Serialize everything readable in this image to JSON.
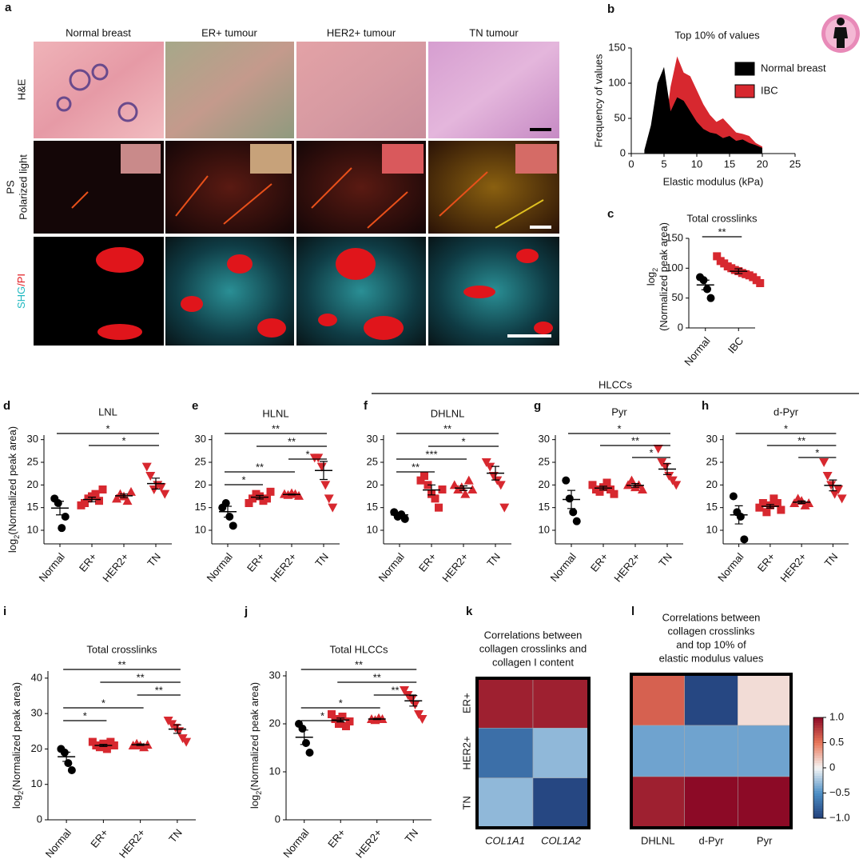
{
  "panel_a": {
    "label": "a",
    "columns": [
      "Normal breast",
      "ER+ tumour",
      "HER2+ tumour",
      "TN tumour"
    ],
    "row_labels": [
      "H&E",
      "PS",
      "Polarized light"
    ],
    "shg_label": "SHG",
    "pi_label": "/PI"
  },
  "hlcc_label": "HLCCs",
  "chart_data": [
    {
      "type": "area",
      "label": "b",
      "title": "Top 10% of values",
      "xlabel": "Elastic modulus (kPa)",
      "ylabel": "Frequency of values",
      "xlim": [
        0,
        25
      ],
      "xticks": [
        0,
        5,
        10,
        15,
        20,
        25
      ],
      "ylim": [
        0,
        150
      ],
      "yticks": [
        0,
        50,
        100,
        150
      ],
      "series": [
        {
          "name": "IBC",
          "color": "#d7282f",
          "x": [
            5,
            5.5,
            6,
            7,
            8,
            9,
            10,
            11,
            12,
            13,
            14,
            15,
            16,
            17,
            18,
            19,
            20
          ],
          "values": [
            0,
            60,
            95,
            138,
            115,
            110,
            90,
            70,
            55,
            45,
            50,
            40,
            30,
            28,
            25,
            15,
            10
          ]
        },
        {
          "name": "Normal breast",
          "color": "#000000",
          "x": [
            2,
            3,
            4,
            5,
            6,
            7,
            8,
            9,
            10,
            11,
            12,
            13,
            14,
            15,
            16,
            17,
            18,
            19,
            20
          ],
          "values": [
            5,
            40,
            100,
            123,
            60,
            80,
            75,
            60,
            45,
            35,
            30,
            28,
            22,
            25,
            18,
            20,
            15,
            12,
            8
          ]
        }
      ]
    },
    {
      "type": "dotplot",
      "label": "c",
      "title": "Total crosslinks",
      "ylabel": [
        "log",
        "2",
        "(Normalized peak area)"
      ],
      "categories": [
        "Normal",
        "IBC"
      ],
      "markers": [
        "circle",
        "square"
      ],
      "colors": [
        "#000000",
        "#d7282f"
      ],
      "ylim": [
        0,
        150
      ],
      "yticks": [
        0,
        50,
        100,
        150
      ],
      "values": [
        [
          85,
          80,
          65,
          50
        ],
        [
          120,
          112,
          108,
          103,
          100,
          97,
          95,
          92,
          90,
          88,
          85,
          80,
          75
        ]
      ],
      "means": [
        72,
        95
      ],
      "errors": [
        8,
        4
      ],
      "comparisons": [
        {
          "groups": [
            "Normal",
            "IBC"
          ],
          "label": "**"
        }
      ]
    },
    {
      "type": "dotplot",
      "label": "d",
      "title": "LNL",
      "ylabel": [
        "log",
        "2",
        "(Normalized peak area)"
      ],
      "categories": [
        "Normal",
        "ER+",
        "HER2+",
        "TN"
      ],
      "markers": [
        "circle",
        "square",
        "triangle-up",
        "triangle-down"
      ],
      "colors": [
        "#000000",
        "#d7282f",
        "#d7282f",
        "#d7282f"
      ],
      "ylim": [
        7,
        31
      ],
      "yticks": [
        10,
        15,
        20,
        25,
        30
      ],
      "values": [
        [
          17,
          16,
          10.5,
          13
        ],
        [
          15.5,
          16,
          17,
          17.5,
          18,
          16.5,
          19
        ],
        [
          17,
          18,
          17.5,
          16.5,
          18.5
        ],
        [
          24,
          22,
          19,
          20,
          19.5,
          18
        ]
      ],
      "means": [
        14.9,
        16.8,
        17.6,
        20.3
      ],
      "errors": [
        1.5,
        0.5,
        0.4,
        1.2
      ],
      "comparisons": [
        {
          "groups": [
            "Normal",
            "TN"
          ],
          "label": "*"
        },
        {
          "groups": [
            "ER+",
            "TN"
          ],
          "label": "*"
        }
      ]
    },
    {
      "type": "dotplot",
      "label": "e",
      "title": "HLNL",
      "categories": [
        "Normal",
        "ER+",
        "HER2+",
        "TN"
      ],
      "markers": [
        "circle",
        "square",
        "triangle-up",
        "triangle-down"
      ],
      "colors": [
        "#000000",
        "#d7282f",
        "#d7282f",
        "#d7282f"
      ],
      "ylim": [
        7,
        31
      ],
      "yticks": [
        10,
        15,
        20,
        25,
        30
      ],
      "values": [
        [
          15,
          16,
          13,
          11
        ],
        [
          16,
          17,
          18,
          17.5,
          16.5,
          17,
          18.5
        ],
        [
          18,
          17.8,
          18.2,
          18,
          17.6
        ],
        [
          26,
          26,
          24,
          20,
          17,
          15
        ]
      ],
      "means": [
        14.1,
        17.3,
        17.9,
        23.2
      ],
      "errors": [
        1.2,
        0.4,
        0.1,
        2
      ],
      "comparisons": [
        {
          "groups": [
            "Normal",
            "TN"
          ],
          "label": "**"
        },
        {
          "groups": [
            "ER+",
            "TN"
          ],
          "label": "**"
        },
        {
          "groups": [
            "HER2+",
            "TN"
          ],
          "label": "*"
        },
        {
          "groups": [
            "Normal",
            "HER2+"
          ],
          "label": "**"
        },
        {
          "groups": [
            "Normal",
            "ER+"
          ],
          "label": "*"
        }
      ]
    },
    {
      "type": "dotplot",
      "label": "f",
      "title": "DHLNL",
      "categories": [
        "Normal",
        "ER+",
        "HER2+",
        "TN"
      ],
      "markers": [
        "circle",
        "square",
        "triangle-up",
        "triangle-down"
      ],
      "colors": [
        "#000000",
        "#d7282f",
        "#d7282f",
        "#d7282f"
      ],
      "ylim": [
        7,
        31
      ],
      "yticks": [
        10,
        15,
        20,
        25,
        30
      ],
      "values": [
        [
          14,
          13,
          13.5,
          12.5
        ],
        [
          21,
          22,
          20,
          18,
          17,
          15,
          19
        ],
        [
          20,
          19,
          19.5,
          18,
          21,
          19
        ],
        [
          25,
          24,
          22,
          21,
          20,
          15
        ]
      ],
      "means": [
        13.4,
        18.9,
        19.3,
        22.6
      ],
      "errors": [
        0.5,
        1.1,
        0.5,
        1.5
      ],
      "comparisons": [
        {
          "groups": [
            "Normal",
            "TN"
          ],
          "label": "**"
        },
        {
          "groups": [
            "ER+",
            "TN"
          ],
          "label": "*"
        },
        {
          "groups": [
            "Normal",
            "HER2+"
          ],
          "label": "***"
        },
        {
          "groups": [
            "Normal",
            "ER+"
          ],
          "label": "**"
        }
      ]
    },
    {
      "type": "dotplot",
      "label": "g",
      "title": "Pyr",
      "categories": [
        "Normal",
        "ER+",
        "HER2+",
        "TN"
      ],
      "markers": [
        "circle",
        "square",
        "triangle-up",
        "triangle-down"
      ],
      "colors": [
        "#000000",
        "#d7282f",
        "#d7282f",
        "#d7282f"
      ],
      "ylim": [
        7,
        31
      ],
      "yticks": [
        10,
        15,
        20,
        25,
        30
      ],
      "values": [
        [
          21,
          17,
          14,
          12
        ],
        [
          20,
          19,
          18.5,
          19.5,
          20.5,
          19,
          18
        ],
        [
          20,
          21,
          19.5,
          20,
          19
        ],
        [
          28,
          25,
          24,
          22,
          21,
          20
        ]
      ],
      "means": [
        16.8,
        19.3,
        19.9,
        23.5
      ],
      "errors": [
        2,
        0.4,
        0.4,
        1.2
      ],
      "comparisons": [
        {
          "groups": [
            "Normal",
            "TN"
          ],
          "label": "*"
        },
        {
          "groups": [
            "ER+",
            "TN"
          ],
          "label": "**"
        },
        {
          "groups": [
            "HER2+",
            "TN"
          ],
          "label": "*"
        }
      ]
    },
    {
      "type": "dotplot",
      "label": "h",
      "title": "d-Pyr",
      "categories": [
        "Normal",
        "ER+",
        "HER2+",
        "TN"
      ],
      "markers": [
        "circle",
        "square",
        "triangle-up",
        "triangle-down"
      ],
      "colors": [
        "#000000",
        "#d7282f",
        "#d7282f",
        "#d7282f"
      ],
      "ylim": [
        7,
        31
      ],
      "yticks": [
        10,
        15,
        20,
        25,
        30
      ],
      "values": [
        [
          17.5,
          14,
          13,
          8
        ],
        [
          15,
          16,
          14,
          15.5,
          17,
          16,
          14.5
        ],
        [
          16,
          17,
          16.5,
          15.5,
          16
        ],
        [
          25,
          22,
          20,
          18,
          19,
          17
        ]
      ],
      "means": [
        13.4,
        15.3,
        16.2,
        19.9
      ],
      "errors": [
        2,
        0.4,
        0.3,
        1.2
      ],
      "comparisons": [
        {
          "groups": [
            "Normal",
            "TN"
          ],
          "label": "*"
        },
        {
          "groups": [
            "ER+",
            "TN"
          ],
          "label": "**"
        },
        {
          "groups": [
            "HER2+",
            "TN"
          ],
          "label": "*"
        }
      ]
    },
    {
      "type": "dotplot",
      "label": "i",
      "title": "Total crosslinks",
      "ylabel": [
        "log",
        "2",
        "(Normalized peak area)"
      ],
      "categories": [
        "Normal",
        "ER+",
        "HER2+",
        "TN"
      ],
      "markers": [
        "circle",
        "square",
        "triangle-up",
        "triangle-down"
      ],
      "colors": [
        "#000000",
        "#d7282f",
        "#d7282f",
        "#d7282f"
      ],
      "ylim": [
        0,
        42
      ],
      "yticks": [
        0,
        10,
        20,
        30,
        40
      ],
      "values": [
        [
          20,
          19,
          16,
          14
        ],
        [
          22,
          21,
          20.5,
          21.5,
          20,
          22,
          21
        ],
        [
          21,
          21.5,
          21,
          20.5,
          21.2
        ],
        [
          28,
          27,
          26,
          25,
          23,
          22
        ]
      ],
      "means": [
        17.8,
        21,
        21.2,
        25.6
      ],
      "errors": [
        1.3,
        0.3,
        0.2,
        1.2
      ],
      "comparisons": [
        {
          "groups": [
            "Normal",
            "TN"
          ],
          "label": "**"
        },
        {
          "groups": [
            "ER+",
            "TN"
          ],
          "label": "**"
        },
        {
          "groups": [
            "HER2+",
            "TN"
          ],
          "label": "**"
        },
        {
          "groups": [
            "Normal",
            "HER2+"
          ],
          "label": "*"
        },
        {
          "groups": [
            "Normal",
            "ER+"
          ],
          "label": "*"
        }
      ]
    },
    {
      "type": "dotplot",
      "label": "j",
      "title": "Total HLCCs",
      "ylabel": [
        "log",
        "2",
        "(Normalized peak area)"
      ],
      "categories": [
        "Normal",
        "ER+",
        "HER2+",
        "TN"
      ],
      "markers": [
        "circle",
        "square",
        "triangle-up",
        "triangle-down"
      ],
      "colors": [
        "#000000",
        "#d7282f",
        "#d7282f",
        "#d7282f"
      ],
      "ylim": [
        0,
        31
      ],
      "yticks": [
        0,
        10,
        20,
        30
      ],
      "values": [
        [
          20,
          19,
          16,
          14
        ],
        [
          22,
          21,
          20,
          21.5,
          19.5,
          20.5
        ],
        [
          21,
          20.8,
          21.2,
          21
        ],
        [
          27,
          26,
          25,
          24,
          22,
          21
        ]
      ],
      "means": [
        17.2,
        20.8,
        21,
        24.8
      ],
      "errors": [
        1.5,
        0.4,
        0.1,
        1.1
      ],
      "comparisons": [
        {
          "groups": [
            "Normal",
            "TN"
          ],
          "label": "**"
        },
        {
          "groups": [
            "ER+",
            "TN"
          ],
          "label": "**"
        },
        {
          "groups": [
            "HER2+",
            "TN"
          ],
          "label": "**"
        },
        {
          "groups": [
            "Normal",
            "HER2+"
          ],
          "label": "*"
        },
        {
          "groups": [
            "Normal",
            "ER+"
          ],
          "label": "*"
        }
      ]
    },
    {
      "type": "heatmap",
      "label": "k",
      "title": [
        "Correlations between",
        "collagen crosslinks and",
        "collagen I content"
      ],
      "rows": [
        "ER+",
        "HER2+",
        "TN"
      ],
      "columns": [
        "COL1A1",
        "COL1A2"
      ],
      "values": [
        [
          0.9,
          0.9
        ],
        [
          -0.7,
          -0.3
        ],
        [
          -0.3,
          -0.95
        ]
      ],
      "zlim": [
        -1,
        1
      ]
    },
    {
      "type": "heatmap",
      "label": "l",
      "title": [
        "Correlations between",
        "collagen crosslinks",
        "and top 10% of",
        "elastic modulus values"
      ],
      "columns": [
        "DHLNL",
        "d-Pyr",
        "Pyr"
      ],
      "values": [
        [
          0.6,
          -0.95,
          0.1
        ],
        [
          -0.4,
          -0.4,
          -0.4
        ],
        [
          0.9,
          1.0,
          1.0
        ]
      ],
      "zlim": [
        -1,
        1
      ],
      "colorbar_ticks": [
        {
          "value": 1,
          "label": "1.0"
        },
        0.5,
        0,
        {
          "value": -0.5,
          "label": "−0.5"
        },
        {
          "value": -1,
          "label": "−1.0"
        }
      ]
    }
  ]
}
